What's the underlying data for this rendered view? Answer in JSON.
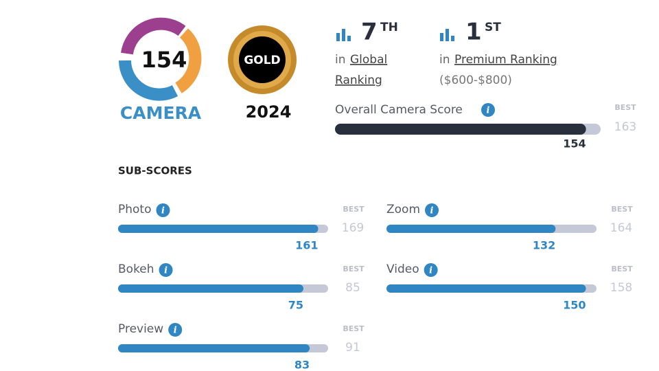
{
  "badge": {
    "score": 154,
    "label": "CAMERA"
  },
  "award": {
    "label": "GOLD",
    "year": "2024"
  },
  "rankings": [
    {
      "rank": 7,
      "suffix": "TH",
      "prefix": "in",
      "link": [
        "Global",
        "Ranking"
      ]
    },
    {
      "rank": 1,
      "suffix": "ST",
      "prefix": "in",
      "link": [
        "Premium Ranking"
      ],
      "note": "($600-$800)"
    }
  ],
  "best_label": "BEST",
  "overall": {
    "label": "Overall Camera Score",
    "score": 154,
    "best": 163
  },
  "sub_scores": {
    "title": "SUB-SCORES",
    "items": [
      {
        "label": "Photo",
        "score": 161,
        "best": 169
      },
      {
        "label": "Zoom",
        "score": 132,
        "best": 164
      },
      {
        "label": "Bokeh",
        "score": 75,
        "best": 85
      },
      {
        "label": "Video",
        "score": 150,
        "best": 158
      },
      {
        "label": "Preview",
        "score": 83,
        "best": 91
      }
    ]
  }
}
